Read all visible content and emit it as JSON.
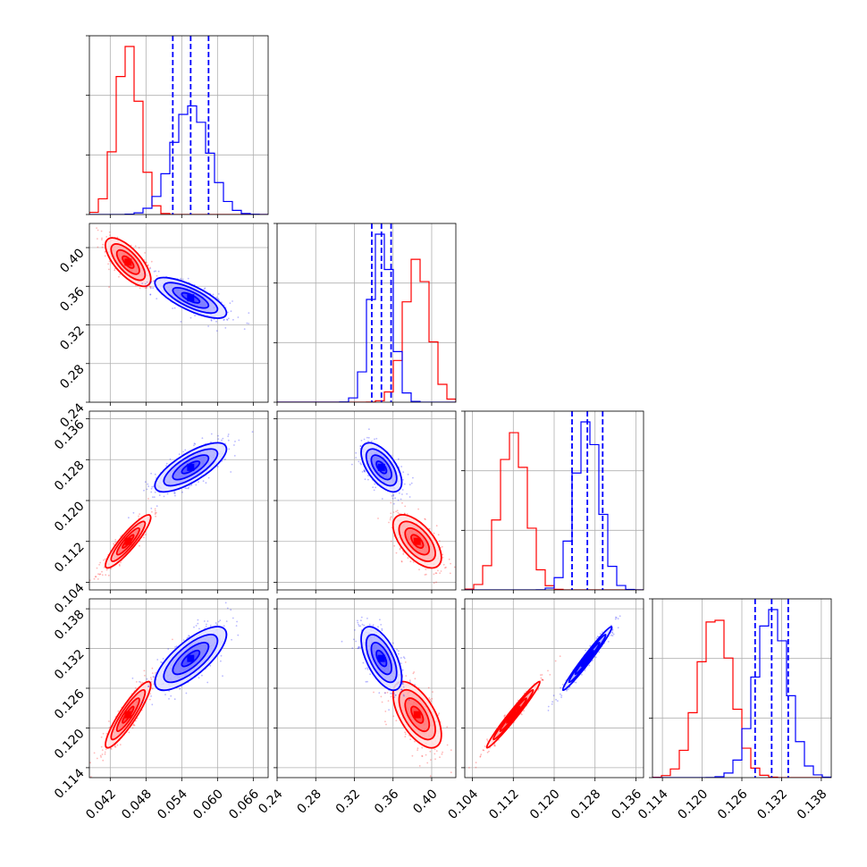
{
  "figure": {
    "type": "corner-plot"
  },
  "colors": {
    "red": "#ff0000",
    "blue": "#0000ff",
    "grid": "#b0b0b0"
  },
  "chart_data": {
    "type": "corner",
    "grid": true,
    "parameters": [
      {
        "range": [
          0.0385,
          0.0685
        ],
        "ticks": [
          "0.042",
          "0.048",
          "0.054",
          "0.060",
          "0.066"
        ]
      },
      {
        "range": [
          0.24,
          0.425
        ],
        "ticks": [
          "0.24",
          "0.28",
          "0.32",
          "0.36",
          "0.40"
        ]
      },
      {
        "range": [
          0.1025,
          0.1375
        ],
        "ticks": [
          "0.104",
          "0.112",
          "0.120",
          "0.128",
          "0.136"
        ]
      },
      {
        "range": [
          0.1125,
          0.1395
        ],
        "ticks": [
          "0.114",
          "0.120",
          "0.126",
          "0.132",
          "0.138"
        ]
      }
    ],
    "series": [
      {
        "color": "#ff0000",
        "mean": [
          0.045,
          0.385,
          0.112,
          0.122
        ],
        "std": [
          0.0019,
          0.0125,
          0.0026,
          0.0025
        ],
        "corr": [
          [
            1,
            -0.7,
            0.9,
            0.9
          ],
          [
            -0.7,
            1,
            -0.6,
            -0.6
          ],
          [
            0.9,
            -0.6,
            1,
            0.98
          ],
          [
            0.9,
            -0.6,
            0.98,
            1
          ]
        ]
      },
      {
        "color": "#0000ff",
        "mean": [
          0.0555,
          0.348,
          0.1265,
          0.1305
        ],
        "std": [
          0.003,
          0.0105,
          0.0024,
          0.0024
        ],
        "corr": [
          [
            1,
            -0.75,
            0.75,
            0.75
          ],
          [
            -0.75,
            1,
            -0.6,
            -0.6
          ],
          [
            0.75,
            -0.6,
            1,
            0.98
          ],
          [
            0.75,
            -0.6,
            0.98,
            1
          ]
        ],
        "quantiles": [
          [
            0.0525,
            0.0555,
            0.0585
          ],
          [
            0.338,
            0.348,
            0.358
          ],
          [
            0.1235,
            0.1265,
            0.1295
          ],
          [
            0.128,
            0.1305,
            0.133
          ]
        ]
      }
    ]
  }
}
